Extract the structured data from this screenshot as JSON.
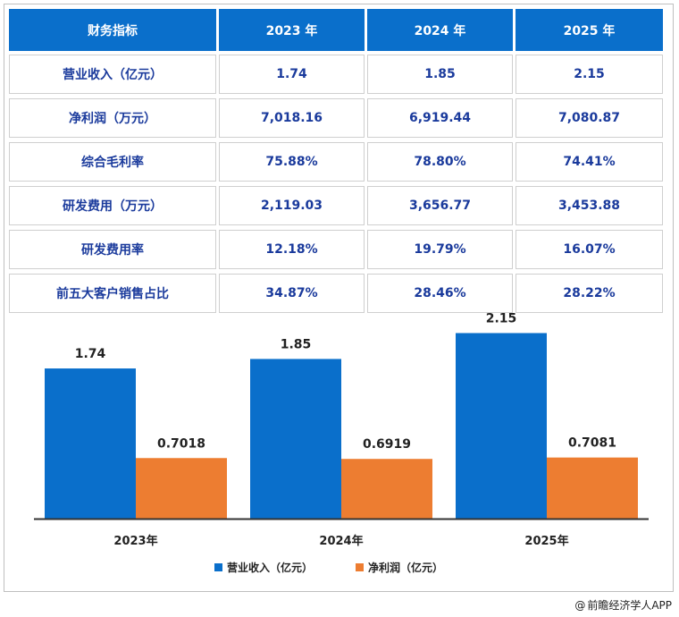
{
  "table": {
    "header": [
      "财务指标",
      "2023 年",
      "2024 年",
      "2025 年"
    ],
    "rows": [
      [
        "营业收入（亿元）",
        "1.74",
        "1.85",
        "2.15"
      ],
      [
        "净利润（万元）",
        "7,018.16",
        "6,919.44",
        "7,080.87"
      ],
      [
        "综合毛利率",
        "75.88%",
        "78.80%",
        "74.41%"
      ],
      [
        "研发费用（万元）",
        "2,119.03",
        "3,656.77",
        "3,453.88"
      ],
      [
        "研发费用率",
        "12.18%",
        "19.79%",
        "16.07%"
      ],
      [
        "前五大客户销售占比",
        "34.87%",
        "28.46%",
        "28.22%"
      ]
    ]
  },
  "chart_data": {
    "type": "bar",
    "categories": [
      "2023年",
      "2024年",
      "2025年"
    ],
    "series": [
      {
        "name": "营业收入（亿元）",
        "values": [
          1.74,
          1.85,
          2.15
        ],
        "labels": [
          "1.74",
          "1.85",
          "2.15"
        ],
        "color": "#0a6fcb"
      },
      {
        "name": "净利润（亿元）",
        "values": [
          0.7018,
          0.6919,
          0.7081
        ],
        "labels": [
          "0.7018",
          "0.6919",
          "0.7081"
        ],
        "color": "#ed7d31"
      }
    ],
    "ylim": [
      0,
      2.3
    ],
    "legend": "bottom"
  },
  "credit": {
    "at": "@",
    "text": "前瞻经济学人APP"
  }
}
